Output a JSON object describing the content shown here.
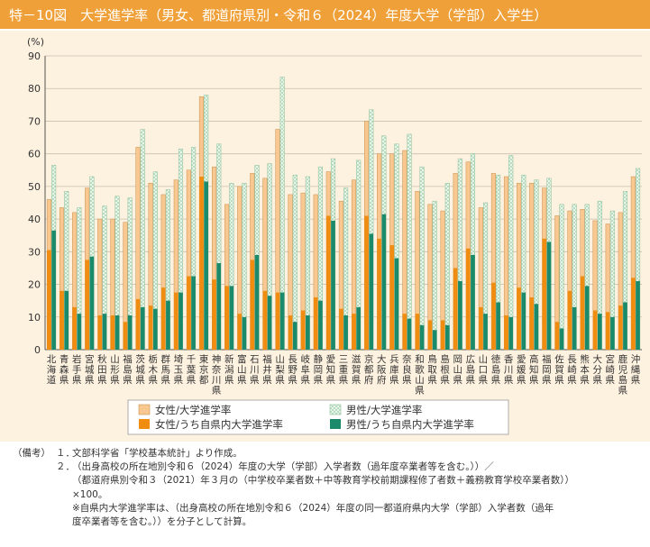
{
  "header": {
    "title": "特－10図　大学進学率（男女、都道府県別・令和６（2024）年度大学（学部）入学生）"
  },
  "colors": {
    "header_bg": "#f0a038",
    "chart_bg": "#fdf1df",
    "female_total": "#f8c890",
    "male_total": "#d8ecdc",
    "female_local": "#f08c10",
    "male_local": "#1a8a6a"
  },
  "chart_data": {
    "type": "bar",
    "ylabel": "(%)",
    "ylim": [
      0,
      90
    ],
    "yticks": [
      0,
      10,
      20,
      30,
      40,
      50,
      60,
      70,
      80,
      90
    ],
    "grid": true,
    "legend_position": "bottom-center",
    "categories": [
      "北海道",
      "青森県",
      "岩手県",
      "宮城県",
      "秋田県",
      "山形県",
      "福島県",
      "茨城県",
      "栃木県",
      "群馬県",
      "埼玉県",
      "千葉県",
      "東京都",
      "神奈川県",
      "新潟県",
      "富山県",
      "石川県",
      "福井県",
      "山梨県",
      "長野県",
      "岐阜県",
      "静岡県",
      "愛知県",
      "三重県",
      "滋賀県",
      "京都府",
      "大阪府",
      "兵庫県",
      "奈良県",
      "和歌山県",
      "鳥取県",
      "島根県",
      "岡山県",
      "広島県",
      "山口県",
      "徳島県",
      "香川県",
      "愛媛県",
      "高知県",
      "福岡県",
      "佐賀県",
      "長崎県",
      "熊本県",
      "大分県",
      "宮崎県",
      "鹿児島県",
      "沖縄県"
    ],
    "series": [
      {
        "name": "女性/大学進学率",
        "values": [
          46,
          43.5,
          42,
          49.5,
          40,
          40,
          39,
          62,
          51,
          47.5,
          52,
          55,
          77.5,
          56,
          44.5,
          50,
          54,
          52.5,
          67.5,
          47.5,
          48,
          47.5,
          54.5,
          45.5,
          52,
          70,
          60,
          60,
          61,
          48.5,
          44.5,
          42.5,
          54,
          57.5,
          43.5,
          54,
          53,
          51,
          51,
          49.5,
          41,
          42.5,
          43,
          39.5,
          38.5,
          42,
          53
        ]
      },
      {
        "name": "男性/大学進学率",
        "values": [
          56.5,
          48.5,
          43.5,
          53,
          44,
          47,
          46.5,
          67.5,
          54.5,
          49,
          61.5,
          62,
          78,
          63,
          51,
          51,
          56.5,
          57,
          83.5,
          53.5,
          53,
          56,
          58.5,
          49.5,
          58,
          73.5,
          65.5,
          63,
          66,
          56,
          45.5,
          51,
          58.5,
          60,
          45,
          53.5,
          59.5,
          53.5,
          52,
          52.5,
          44.5,
          44.5,
          44.5,
          45.5,
          42.5,
          48.5,
          55.5
        ]
      },
      {
        "name": "女性/うち自県内大学進学率",
        "values": [
          30.5,
          18,
          13,
          27.5,
          10.5,
          10.5,
          8.5,
          15.5,
          13.5,
          19,
          17.5,
          22.5,
          53,
          21.5,
          19.5,
          11,
          27.5,
          18,
          17.5,
          10.5,
          12,
          16,
          41,
          12.5,
          11,
          41,
          34,
          32,
          11,
          11,
          9,
          9,
          25,
          31,
          13,
          20.5,
          10.5,
          19,
          16,
          34,
          8.5,
          18,
          22.5,
          12,
          11.5,
          13.5,
          22
        ]
      },
      {
        "name": "男性/うち自県内大学進学率",
        "values": [
          36.5,
          18,
          11,
          28.5,
          11,
          10.5,
          10.5,
          13,
          12.5,
          15,
          17.5,
          22.5,
          51.5,
          26.5,
          19.5,
          10,
          29,
          16.5,
          17.5,
          8.5,
          10.5,
          15,
          39.5,
          10.5,
          13,
          35.5,
          41.5,
          28,
          9.5,
          7.5,
          6,
          7.5,
          21,
          29,
          11,
          14.5,
          10,
          17.5,
          14,
          33,
          6.5,
          13,
          19.5,
          11,
          10,
          14.5,
          21
        ]
      }
    ]
  },
  "notes": {
    "label": "（備考）",
    "items": [
      {
        "num": "１．",
        "text": "文部科学省「学校基本統計」より作成。"
      },
      {
        "num": "２．",
        "text": "（出身高校の所在地別令和６（2024）年度の大学（学部）入学者数（過年度卒業者等を含む。））／\n（都道府県別令和３（2021）年３月の（中学校卒業者数＋中等教育学校前期課程修了者数＋義務教育学校卒業者数））\n×100。"
      },
      {
        "num": "",
        "text": "※自県内大学進学率は、（出身高校の所在地別令和６（2024）年度の同一都道府県内大学（学部）入学者数（過年\n度卒業者等を含む。））を分子として計算。"
      }
    ]
  }
}
